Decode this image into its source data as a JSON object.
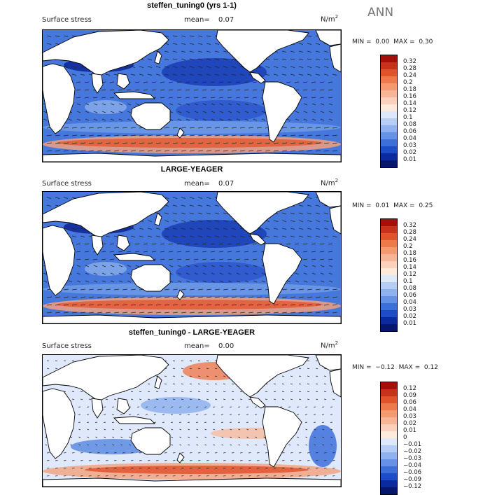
{
  "season": "ANN",
  "unit_base": "N/m",
  "unit_exp": "2",
  "colors": {
    "land": "#ffffff",
    "coast": "#000000",
    "arrow": "#222222"
  },
  "panels": [
    {
      "title": "steffen_tuning0 (yrs 1-1)",
      "variable": "Surface stress",
      "mean_label": "mean=",
      "mean_value": "0.07",
      "min_label": "MIN =",
      "min_value": "0.00",
      "max_label": "MAX =",
      "max_value": "0.30",
      "levels": [
        "0.32",
        "0.28",
        "0.24",
        "0.2",
        "0.18",
        "0.16",
        "0.14",
        "0.12",
        "0.1",
        "0.08",
        "0.06",
        "0.04",
        "0.03",
        "0.02",
        "0.01"
      ],
      "colors": [
        "#a50f0a",
        "#c8321a",
        "#e0532b",
        "#ee7a4c",
        "#f59a70",
        "#f8b596",
        "#fbd1bb",
        "#fdeadd",
        "#dde8fb",
        "#b6cdf6",
        "#8fb1ef",
        "#6592e6",
        "#3d6fdb",
        "#1d4cc8",
        "#0c2aa0",
        "#06166e"
      ]
    },
    {
      "title": "LARGE-YEAGER",
      "variable": "Surface stress",
      "mean_label": "mean=",
      "mean_value": "0.07",
      "min_label": "MIN =",
      "min_value": "0.01",
      "max_label": "MAX =",
      "max_value": "0.25",
      "levels": [
        "0.32",
        "0.28",
        "0.24",
        "0.2",
        "0.18",
        "0.16",
        "0.14",
        "0.12",
        "0.1",
        "0.08",
        "0.06",
        "0.04",
        "0.03",
        "0.02",
        "0.01"
      ],
      "colors": [
        "#a50f0a",
        "#c8321a",
        "#e0532b",
        "#ee7a4c",
        "#f59a70",
        "#f8b596",
        "#fbd1bb",
        "#fdeadd",
        "#dde8fb",
        "#b6cdf6",
        "#8fb1ef",
        "#6592e6",
        "#3d6fdb",
        "#1d4cc8",
        "#0c2aa0",
        "#06166e"
      ]
    },
    {
      "title": "steffen_tuning0 - LARGE-YEAGER",
      "variable": "Surface stress",
      "mean_label": "mean=",
      "mean_value": "0.00",
      "min_label": "MIN =",
      "min_value": "−0.12",
      "max_label": "MAX =",
      "max_value": "0.12",
      "levels": [
        "0.12",
        "0.09",
        "0.06",
        "0.04",
        "0.03",
        "0.02",
        "0.01",
        "0",
        "−0.01",
        "−0.02",
        "−0.03",
        "−0.04",
        "−0.06",
        "−0.09",
        "−0.12"
      ],
      "colors": [
        "#a50f0a",
        "#c8321a",
        "#e0532b",
        "#ee7a4c",
        "#f59a70",
        "#f8b596",
        "#fbd1bb",
        "#fdeadd",
        "#dde8fb",
        "#b6cdf6",
        "#8fb1ef",
        "#6592e6",
        "#3d6fdb",
        "#1d4cc8",
        "#0c2aa0",
        "#06166e"
      ]
    }
  ]
}
